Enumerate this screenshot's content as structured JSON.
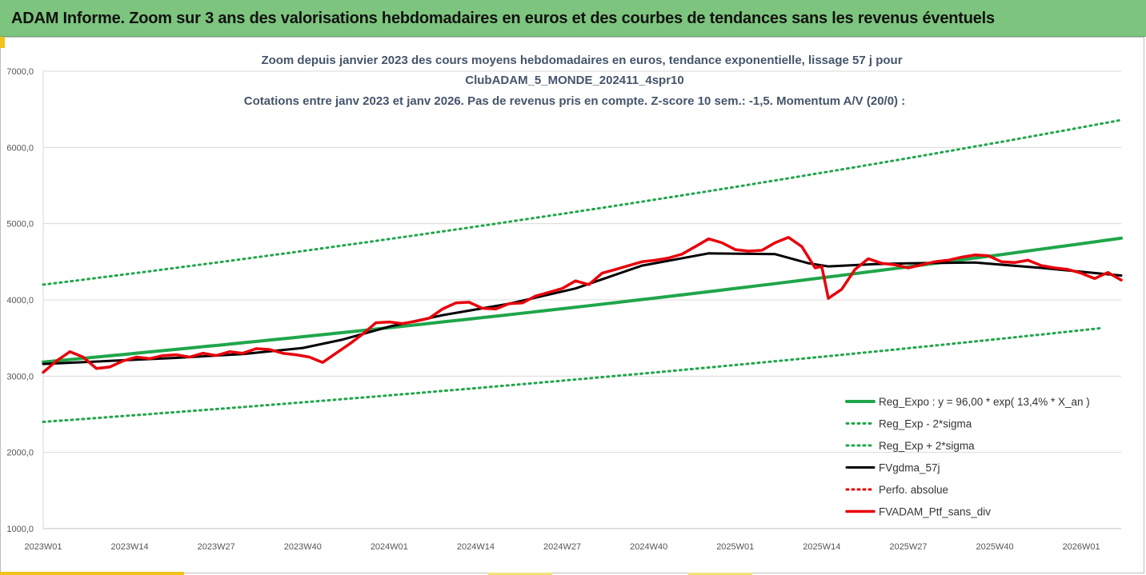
{
  "page": {
    "banner_title": "ADAM Informe. Zoom sur 3 ans des valorisations hebdomadaires en euros et des courbes de tendances sans les revenus éventuels"
  },
  "colors": {
    "banner_bg": "#7dc57e",
    "regression": "#1fa64a",
    "band": "#1fa64a",
    "moving_average": "#000000",
    "perf": "#e00000",
    "portfolio": "#e8000b",
    "accent": "#f1c21b"
  },
  "chart_data": {
    "type": "line",
    "title_lines": [
      "Zoom depuis janvier 2023 des cours moyens hebdomadaires  en euros, tendance exponentielle, lissage 57 j pour",
      "ClubADAM_5_MONDE_202411_4spr10",
      "Cotations entre janv 2023 et janv 2026. Pas de revenus pris en compte. Z-score 10 sem.: -1,5. Momentum A/V (20/0) :"
    ],
    "ylim": [
      1000,
      7000
    ],
    "yticks": [
      "1000,0",
      "2000,0",
      "3000,0",
      "4000,0",
      "5000,0",
      "6000,0",
      "7000,0"
    ],
    "ytick_values": [
      1000,
      2000,
      3000,
      4000,
      5000,
      6000,
      7000
    ],
    "xlim": [
      0,
      162
    ],
    "xticks": [
      "2023W01",
      "2023W14",
      "2023W27",
      "2023W40",
      "2024W01",
      "2024W14",
      "2024W27",
      "2024W40",
      "2025W01",
      "2025W14",
      "2025W27",
      "2025W40",
      "2026W01"
    ],
    "xtick_values": [
      0,
      13,
      26,
      39,
      52,
      65,
      78,
      91,
      104,
      117,
      130,
      143,
      156
    ],
    "grid": "horizontal",
    "legend_position": "bottom-right",
    "series": [
      {
        "name": "Reg_Expo : y = 96,00 * exp( 13,4% *  X_an )",
        "style": "solid-thick",
        "x": [
          0,
          162
        ],
        "values": [
          3185,
          4810
        ],
        "curve": "exponential"
      },
      {
        "name": "Reg_Exp - 2*sigma",
        "style": "dotted",
        "x": [
          0,
          159
        ],
        "values": [
          2400,
          3630
        ],
        "curve": "exponential"
      },
      {
        "name": "Reg_Exp + 2*sigma",
        "style": "dotted",
        "x": [
          0,
          162
        ],
        "values": [
          4200,
          6360
        ],
        "curve": "exponential"
      },
      {
        "name": "FVgdma_57j",
        "style": "solid-thick",
        "x": [
          0,
          10,
          20,
          30,
          39,
          45,
          52,
          60,
          70,
          80,
          90,
          100,
          110,
          115,
          118,
          125,
          130,
          140,
          150,
          162
        ],
        "values": [
          3160,
          3200,
          3240,
          3290,
          3370,
          3480,
          3650,
          3800,
          3950,
          4150,
          4450,
          4610,
          4600,
          4480,
          4440,
          4470,
          4480,
          4490,
          4420,
          4320
        ]
      },
      {
        "name": "Perfo. absolue",
        "style": "dotted",
        "x": [],
        "values": []
      },
      {
        "name": "FVADAM_Ptf_sans_div",
        "style": "solid-thick",
        "x": [
          0,
          2,
          4,
          6,
          8,
          10,
          12,
          14,
          16,
          18,
          20,
          22,
          24,
          26,
          28,
          30,
          32,
          34,
          36,
          38,
          40,
          42,
          44,
          46,
          48,
          50,
          52,
          54,
          56,
          58,
          60,
          62,
          64,
          66,
          68,
          70,
          72,
          74,
          76,
          78,
          80,
          82,
          84,
          86,
          88,
          90,
          92,
          94,
          96,
          98,
          100,
          102,
          104,
          106,
          108,
          110,
          112,
          114,
          116,
          117,
          118,
          120,
          122,
          124,
          126,
          128,
          130,
          132,
          134,
          136,
          138,
          140,
          142,
          144,
          146,
          148,
          150,
          152,
          154,
          156,
          158,
          160,
          162
        ],
        "values": [
          3050,
          3200,
          3320,
          3250,
          3100,
          3120,
          3200,
          3250,
          3230,
          3270,
          3280,
          3250,
          3300,
          3270,
          3320,
          3300,
          3360,
          3350,
          3300,
          3280,
          3250,
          3180,
          3300,
          3420,
          3550,
          3700,
          3710,
          3690,
          3720,
          3760,
          3880,
          3960,
          3970,
          3890,
          3880,
          3950,
          3960,
          4050,
          4100,
          4150,
          4250,
          4200,
          4350,
          4400,
          4450,
          4500,
          4520,
          4550,
          4600,
          4700,
          4800,
          4750,
          4660,
          4640,
          4650,
          4750,
          4820,
          4700,
          4420,
          4440,
          4020,
          4140,
          4400,
          4540,
          4480,
          4460,
          4420,
          4460,
          4500,
          4520,
          4560,
          4590,
          4580,
          4500,
          4490,
          4520,
          4450,
          4420,
          4400,
          4350,
          4280,
          4360,
          4260
        ]
      }
    ]
  }
}
